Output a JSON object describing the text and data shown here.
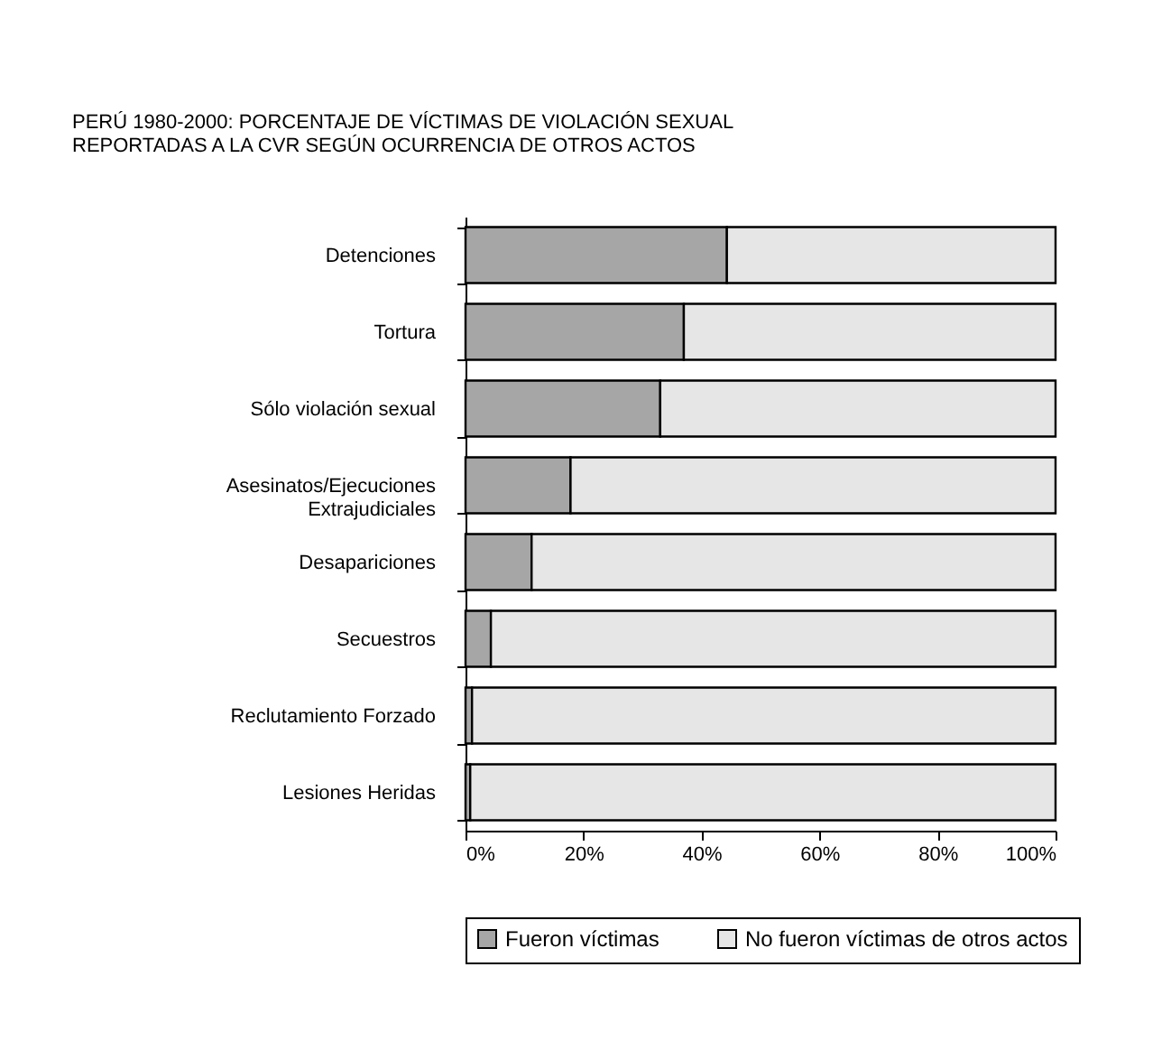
{
  "chart_data": {
    "type": "bar",
    "orientation": "horizontal",
    "stacked": true,
    "title": "PERÚ 1980-2000: PORCENTAJE DE VÍCTIMAS DE VIOLACIÓN SEXUAL REPORTADAS A LA CVR SEGÚN OCURRENCIA DE OTROS ACTOS",
    "categories": [
      "Detenciones",
      "Tortura",
      "Sólo violación sexual",
      "Asesinatos/Ejecuciones Extrajudiciales",
      "Desapariciones",
      "Secuestros",
      "Reclutamiento Forzado",
      "Lesiones Heridas"
    ],
    "series": [
      {
        "name": "Fueron víctimas",
        "color": "#a6a6a6",
        "values": [
          44.3,
          37,
          33,
          17.8,
          11.2,
          4.3,
          1.1,
          0.8
        ]
      },
      {
        "name": "No fueron víctimas de otros actos",
        "color": "#e6e6e6",
        "values": [
          55.7,
          63,
          67,
          82.2,
          88.8,
          95.7,
          98.9,
          99.2
        ]
      }
    ],
    "xlim": [
      0,
      100
    ],
    "xticks": [
      {
        "value": 0,
        "label": "0%"
      },
      {
        "value": 20,
        "label": "20%"
      },
      {
        "value": 40,
        "label": "40%"
      },
      {
        "value": 60,
        "label": "60%"
      },
      {
        "value": 80,
        "label": "80%"
      },
      {
        "value": 100,
        "label": "100%"
      }
    ],
    "legend": "bottom",
    "grid": false
  }
}
